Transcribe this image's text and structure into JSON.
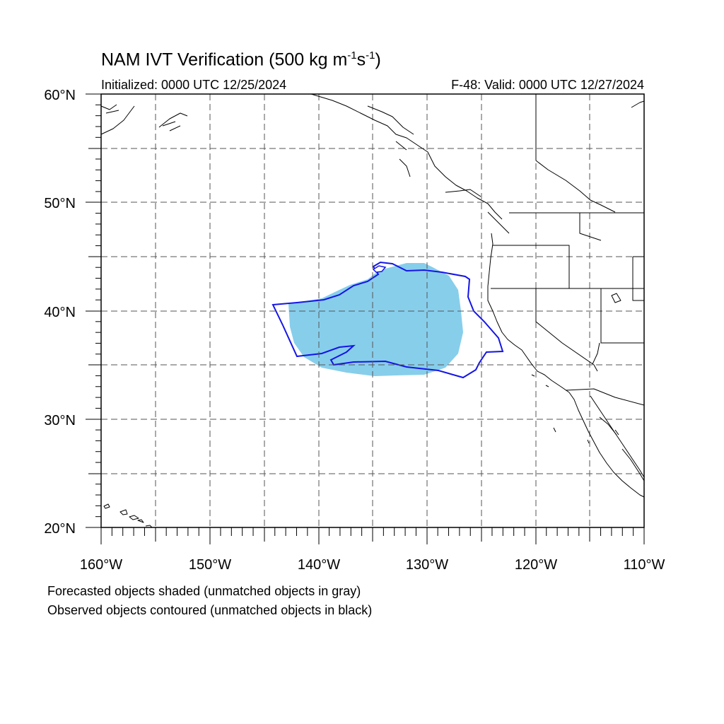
{
  "title": {
    "text": "NAM IVT Verification (500 kg m",
    "sup1": "-1",
    "mid": "s",
    "sup2": "-1",
    "tail": ")"
  },
  "initialized": "Initialized: 0000 UTC 12/25/2024",
  "valid": "F-48: Valid: 0000 UTC 12/27/2024",
  "lat_labels": [
    "20°N",
    "30°N",
    "40°N",
    "50°N",
    "60°N"
  ],
  "lon_labels": [
    "160°W",
    "150°W",
    "140°W",
    "130°W",
    "120°W",
    "110°W"
  ],
  "legend": {
    "forecast_note": "Forecasted objects shaded (unmatched objects in gray)",
    "observed_note": "Observed objects contoured (unmatched objects in black)"
  },
  "colors": {
    "forecast_fill": "#87ceeb",
    "observed_contour": "#1515e6",
    "coastline": "#000000",
    "grid": "#555555"
  },
  "map": {
    "lon_range": [
      -160,
      -110
    ],
    "lat_range": [
      20,
      60
    ],
    "grid_spacing_deg": 5,
    "grid_style": "dashed"
  }
}
